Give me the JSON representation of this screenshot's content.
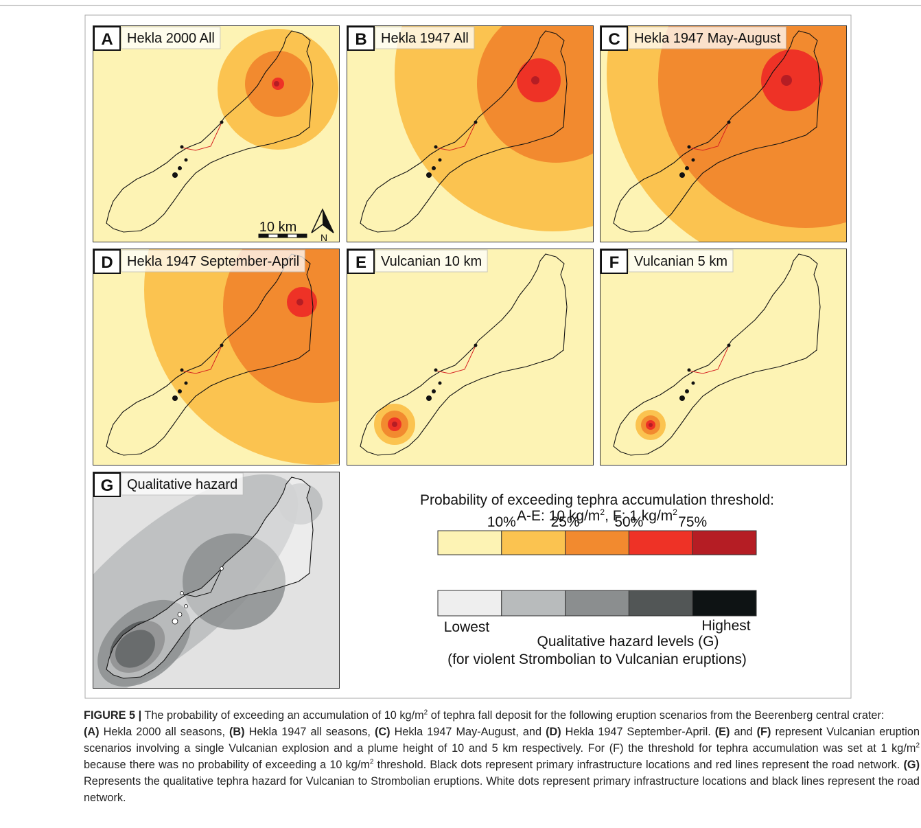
{
  "figure": {
    "panels": [
      {
        "letter": "A",
        "title": "Hekla 2000 All"
      },
      {
        "letter": "B",
        "title": "Hekla 1947 All"
      },
      {
        "letter": "C",
        "title": "Hekla 1947 May-August"
      },
      {
        "letter": "D",
        "title": "Hekla 1947 September-April"
      },
      {
        "letter": "E",
        "title": "Vulcanian 10 km"
      },
      {
        "letter": "F",
        "title": "Vulcanian 5 km"
      },
      {
        "letter": "G",
        "title": "Qualitative hazard"
      }
    ],
    "scale_bar": "10 km",
    "north": "N",
    "legend": {
      "title": "Probability of exceeding tephra accumulation threshold:",
      "subtitle": [
        {
          "text": "A-E: 10 kg/m"
        },
        {
          "text": "2",
          "sup": true
        },
        {
          "text": ", F: 1 kg/m"
        },
        {
          "text": "2",
          "sup": true
        }
      ],
      "probability_ticks": [
        "10%",
        "25%",
        "50%",
        "75%"
      ],
      "probability_colors": [
        "#fdf3b4",
        "#fbc350",
        "#f28a2f",
        "#ee3226",
        "#b51d24"
      ],
      "hazard_colors": [
        "#eeeeee",
        "#b8bbbc",
        "#8b8e8f",
        "#525656",
        "#0e1314"
      ],
      "lowest": "Lowest",
      "highest": "Highest",
      "hazard_title": "Qualitative hazard levels (G)",
      "hazard_subtitle": "(for violent Strombolian to Vulcanian eruptions)"
    }
  },
  "caption": [
    [
      {
        "text": "FIGURE 5 |",
        "bold": true
      },
      {
        "text": " The probability of exceeding an accumulation of 10 kg/m"
      },
      {
        "text": "2",
        "sup": true
      },
      {
        "text": " of tephra fall deposit for the following eruption scenarios from the Beerenberg central crater:"
      }
    ],
    [
      {
        "text": "(A)",
        "bold": true
      },
      {
        "text": " Hekla 2000 all seasons, "
      },
      {
        "text": "(B)",
        "bold": true
      },
      {
        "text": " Hekla 1947 all seasons, "
      },
      {
        "text": "(C)",
        "bold": true
      },
      {
        "text": " Hekla 1947 May-August, and "
      },
      {
        "text": "(D)",
        "bold": true
      },
      {
        "text": " Hekla 1947 September-April. "
      },
      {
        "text": "(E)",
        "bold": true
      },
      {
        "text": " and "
      },
      {
        "text": "(F)",
        "bold": true
      },
      {
        "text": " represent Vulcanian eruption scenarios involving a single Vulcanian explosion and a plume height of 10 and 5 km respectively. For (F) the threshold for tephra accumulation was set at 1 kg/m"
      },
      {
        "text": "2",
        "sup": true
      },
      {
        "text": " because there was no probability of exceeding a 10 kg/m"
      },
      {
        "text": "2",
        "sup": true
      },
      {
        "text": " threshold. Black dots represent primary infrastructure locations and red lines represent the road network. "
      },
      {
        "text": "(G)",
        "bold": true
      },
      {
        "text": " Represents the qualitative tephra hazard for Vulcanian to Strombolian eruptions. White dots represent primary infrastructure locations and black lines represent the road network."
      }
    ]
  ]
}
